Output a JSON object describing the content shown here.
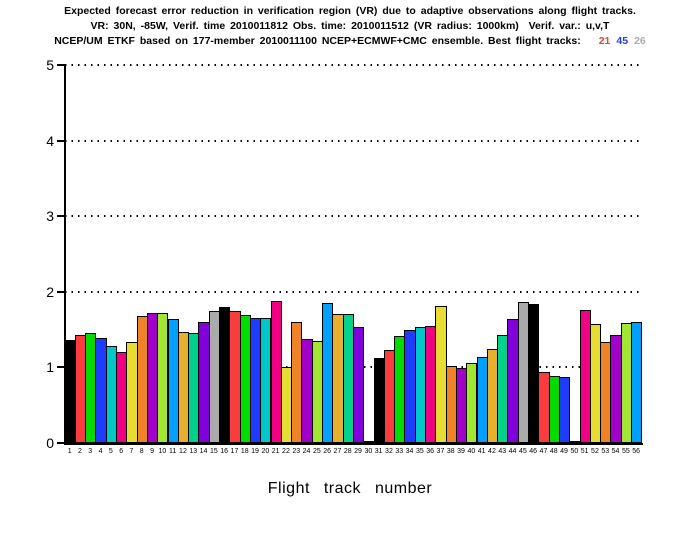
{
  "title": {
    "line1": "Expected forecast error reduction in verification region (VR) due to adaptive observations along flight tracks.",
    "line2": "VR: 30N, -85W, Verif. time 2010011812 Obs. time: 2010011512 (VR radius: 1000km)  Verif. var.: u,v,T",
    "line3_prefix": "NCEP/UM ETKF based on 177-member 2010011100 NCEP+ECMWF+CMC ensemble. Best flight tracks:",
    "best_tracks": [
      {
        "label": "21",
        "color": "#fa3c3c"
      },
      {
        "label": "45",
        "color": "#1e3cff"
      },
      {
        "label": "26",
        "color": "#aaaaaa"
      }
    ]
  },
  "chart_data": {
    "type": "bar",
    "title": "Expected forecast error reduction in verification region (VR) due to adaptive observations along flight tracks.",
    "xlabel": "Flight track number",
    "ylabel": "",
    "ylim": [
      0,
      5
    ],
    "yticks": [
      0,
      1,
      2,
      3,
      4,
      5
    ],
    "grid": "horizontal dotted lines at each integer y value",
    "legend": "none",
    "categories": [
      "1",
      "2",
      "3",
      "4",
      "5",
      "6",
      "7",
      "8",
      "9",
      "10",
      "11",
      "12",
      "13",
      "14",
      "15",
      "16",
      "17",
      "18",
      "19",
      "20",
      "21",
      "22",
      "23",
      "24",
      "25",
      "26",
      "27",
      "28",
      "29",
      "30",
      "31",
      "32",
      "33",
      "34",
      "35",
      "36",
      "37",
      "38",
      "39",
      "40",
      "41",
      "42",
      "43",
      "44",
      "45",
      "46",
      "47",
      "48",
      "49",
      "50",
      "51",
      "52",
      "53",
      "54",
      "55",
      "56"
    ],
    "values": [
      1.36,
      1.43,
      1.46,
      1.39,
      1.28,
      1.21,
      1.34,
      1.68,
      1.72,
      1.72,
      1.64,
      1.47,
      1.45,
      1.6,
      1.74,
      1.8,
      1.74,
      1.69,
      1.66,
      1.66,
      1.88,
      1.0,
      1.6,
      1.38,
      1.35,
      1.85,
      1.71,
      1.71,
      1.53,
      0.03,
      1.12,
      1.23,
      1.41,
      1.49,
      1.53,
      1.55,
      1.81,
      1.02,
      0.99,
      1.06,
      1.14,
      1.24,
      1.43,
      1.64,
      1.87,
      1.84,
      0.94,
      0.89,
      0.87,
      0.03,
      1.76,
      1.58,
      1.33,
      1.43,
      1.59,
      1.6
    ],
    "bar_color_cycle": [
      "#000000",
      "#fa3c3c",
      "#00dc00",
      "#1e3cff",
      "#00c8c8",
      "#f00082",
      "#e6dc32",
      "#f08228",
      "#a000c8",
      "#a0e632",
      "#00a0ff",
      "#e6af2d",
      "#00d28c",
      "#8200dc",
      "#aaaaaa"
    ],
    "bar_outline_color": "#000000",
    "highest_bars_match_best_tracks": [
      "21",
      "45",
      "26"
    ]
  }
}
